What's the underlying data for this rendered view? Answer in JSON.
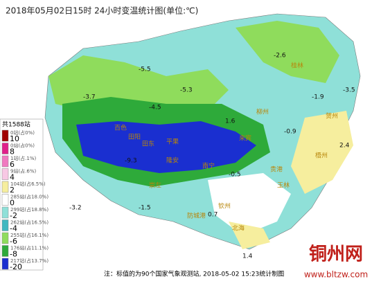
{
  "title": "2018年05月02日15时 24小时变温统计图(单位:℃)",
  "legend": {
    "total": "共1588站",
    "items": [
      {
        "count": "0站(占0%)",
        "value": "10",
        "color": "#a00000"
      },
      {
        "count": "0站(占0%)",
        "value": "8",
        "color": "#e0208a"
      },
      {
        "count": "1站(占.1%)",
        "value": "6",
        "color": "#f07ac0"
      },
      {
        "count": "9站(占.6%)",
        "value": "4",
        "color": "#f8c8e4"
      },
      {
        "count": "104站(占6.5%)",
        "value": "2",
        "color": "#f6ee9e"
      },
      {
        "count": "285站(占18.0%)",
        "value": "0",
        "color": "#ffffff"
      },
      {
        "count": "299站(占18.8%)",
        "value": "-2",
        "color": "#8fe0d8"
      },
      {
        "count": "262站(占16.5%)",
        "value": "-4",
        "color": "#3fb8c0"
      },
      {
        "count": "255站(占16.1%)",
        "value": "-6",
        "color": "#8fdc5c"
      },
      {
        "count": "176站(占11.1%)",
        "value": "-8",
        "color": "#2eaa3a"
      },
      {
        "count": "217站(占13.7%)",
        "value": "-20",
        "color": "#1a2fd0"
      }
    ]
  },
  "places": [
    "百色",
    "田阳",
    "田东",
    "平果",
    "隆安",
    "崇左",
    "来宾",
    "柳州",
    "桂林",
    "贺州",
    "梧州",
    "贵港",
    "玉林",
    "钦州",
    "北海",
    "防城港",
    "南宁"
  ],
  "station_values": [
    "-5.5",
    "-3.7",
    "-4.5",
    "-9.3",
    "-1.9",
    "-3.2",
    "-1.5",
    "2.4",
    "0.7",
    "1.4",
    "-2.6",
    "-0.9",
    "-5.3",
    "1.6",
    "-0.5",
    "-3.5"
  ],
  "footnote": "注：标值的为90个国家气象观测站, 2018-05-02 15:23统计制图",
  "watermark": {
    "name": "铜州网",
    "url": "www.bltzw.com"
  }
}
